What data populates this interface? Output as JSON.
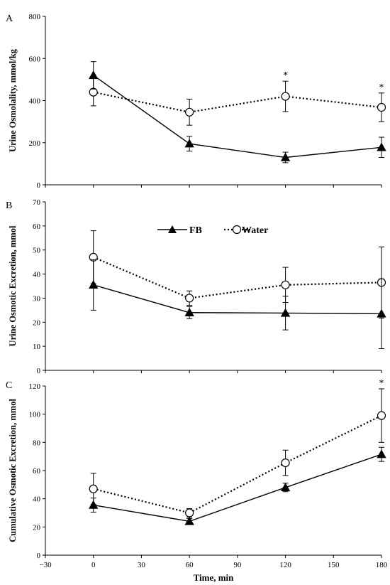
{
  "chart_data": [
    {
      "type": "line",
      "panel_label": "A",
      "ylabel": "Urine Osmolality, mmol/kg",
      "ylim": [
        0,
        800
      ],
      "yticks": [
        0,
        200,
        400,
        600,
        800
      ],
      "xlim": [
        -30,
        180
      ],
      "xticks": [
        -30,
        0,
        30,
        60,
        90,
        120,
        150,
        180
      ],
      "show_x_tick_labels": false,
      "series": [
        {
          "name": "FB",
          "marker": "filled-triangle",
          "line": "solid",
          "x": [
            0,
            60,
            120,
            180
          ],
          "y": [
            520,
            195,
            130,
            178
          ],
          "err": [
            65,
            35,
            25,
            48
          ]
        },
        {
          "name": "Water",
          "marker": "open-circle",
          "line": "dotted",
          "x": [
            0,
            60,
            120,
            180
          ],
          "y": [
            440,
            345,
            420,
            368
          ],
          "err": [
            65,
            62,
            72,
            68
          ]
        }
      ],
      "annotations": [
        {
          "text": "*",
          "x": 120
        },
        {
          "text": "*",
          "x": 180
        }
      ]
    },
    {
      "type": "line",
      "panel_label": "B",
      "ylabel": "Urine Osmotic Excretion, mmol",
      "ylim": [
        0,
        70
      ],
      "yticks": [
        0,
        10,
        20,
        30,
        40,
        50,
        60,
        70
      ],
      "xlim": [
        -30,
        180
      ],
      "xticks": [
        -30,
        0,
        30,
        60,
        90,
        120,
        150,
        180
      ],
      "show_x_tick_labels": false,
      "legend": {
        "position": "top-center",
        "entries": [
          "FB",
          "Water"
        ]
      },
      "series": [
        {
          "name": "FB",
          "marker": "filled-triangle",
          "line": "solid",
          "x": [
            0,
            60,
            120,
            180
          ],
          "y": [
            35.5,
            24,
            23.8,
            23.5
          ],
          "err": [
            10.5,
            2.5,
            7,
            14.5
          ]
        },
        {
          "name": "Water",
          "marker": "open-circle",
          "line": "dotted",
          "x": [
            0,
            60,
            120,
            180
          ],
          "y": [
            47,
            30,
            35.5,
            36.5
          ],
          "err": [
            11,
            3,
            7.3,
            14.8
          ]
        }
      ],
      "annotations": []
    },
    {
      "type": "line",
      "panel_label": "C",
      "ylabel": "Cumulative Osmotic Excretion, mmol",
      "xlabel": "Time, min",
      "ylim": [
        0,
        120
      ],
      "yticks": [
        0,
        20,
        40,
        60,
        80,
        100,
        120
      ],
      "xlim": [
        -30,
        180
      ],
      "xticks": [
        -30,
        0,
        30,
        60,
        90,
        120,
        150,
        180
      ],
      "show_x_tick_labels": true,
      "series": [
        {
          "name": "FB",
          "marker": "filled-triangle",
          "line": "solid",
          "x": [
            0,
            60,
            120,
            180
          ],
          "y": [
            35.5,
            24,
            48,
            71.5
          ],
          "err": [
            5,
            2,
            3,
            5
          ]
        },
        {
          "name": "Water",
          "marker": "open-circle",
          "line": "dotted",
          "x": [
            0,
            60,
            120,
            180
          ],
          "y": [
            47,
            30,
            65.5,
            99
          ],
          "err": [
            11,
            3,
            9,
            19
          ]
        }
      ],
      "annotations": [
        {
          "text": "*",
          "x": 180
        }
      ]
    }
  ]
}
